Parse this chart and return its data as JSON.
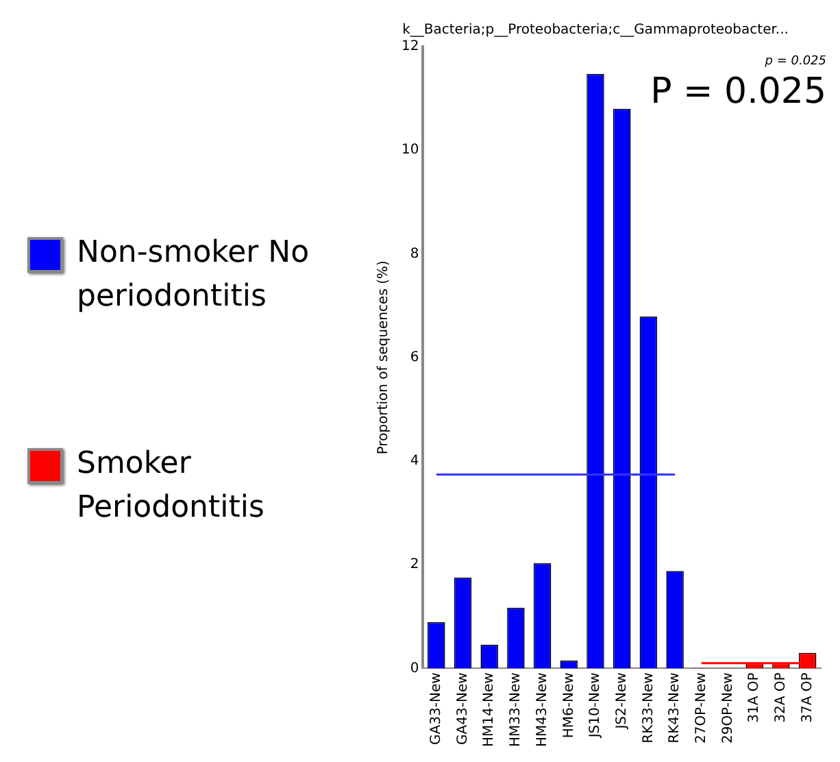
{
  "chart_data": {
    "type": "bar",
    "title": "k__Bacteria;p__Proteobacteria;c__Gammaproteobacter...",
    "ylabel": "Proportion of sequences (%)",
    "categories": [
      "GA33-New",
      "GA43-New",
      "HM14-New",
      "HM33-New",
      "HM43-New",
      "HM6-New",
      "JS10-New",
      "JS2-New",
      "RK33-New",
      "RK43-New",
      "27OP-New",
      "29OP-New",
      "31A OP",
      "32A OP",
      "37A OP"
    ],
    "series": [
      {
        "name": "Non-smoker No periodontitis",
        "color": "#0000ff",
        "values": [
          0.89,
          1.75,
          0.46,
          1.17,
          2.03,
          0.15,
          11.47,
          10.8,
          6.79,
          1.88,
          null,
          null,
          null,
          null,
          null
        ]
      },
      {
        "name": "Smoker Periodontitis",
        "color": "#ff0000",
        "values": [
          null,
          null,
          null,
          null,
          null,
          null,
          null,
          null,
          null,
          null,
          0.01,
          0.01,
          0.1,
          0.1,
          0.3
        ]
      },
      {
        "type": "line",
        "color": "#3333ff",
        "values": [
          3.74,
          3.74,
          3.74,
          3.74,
          3.74,
          3.74,
          3.74,
          3.74,
          3.74,
          3.74,
          null,
          null,
          null,
          null,
          null
        ]
      },
      {
        "type": "line",
        "color": "#ff0000",
        "values": [
          null,
          null,
          null,
          null,
          null,
          null,
          null,
          null,
          null,
          null,
          0.1,
          0.1,
          0.1,
          0.1,
          0.1
        ]
      }
    ],
    "ylim": [
      0,
      12
    ],
    "yticks": [
      0,
      2,
      4,
      6,
      8,
      10,
      12
    ],
    "grid": false,
    "legend": "left",
    "marker": "none",
    "annotations": [
      "P = 0.025",
      "p = 0.025"
    ]
  }
}
